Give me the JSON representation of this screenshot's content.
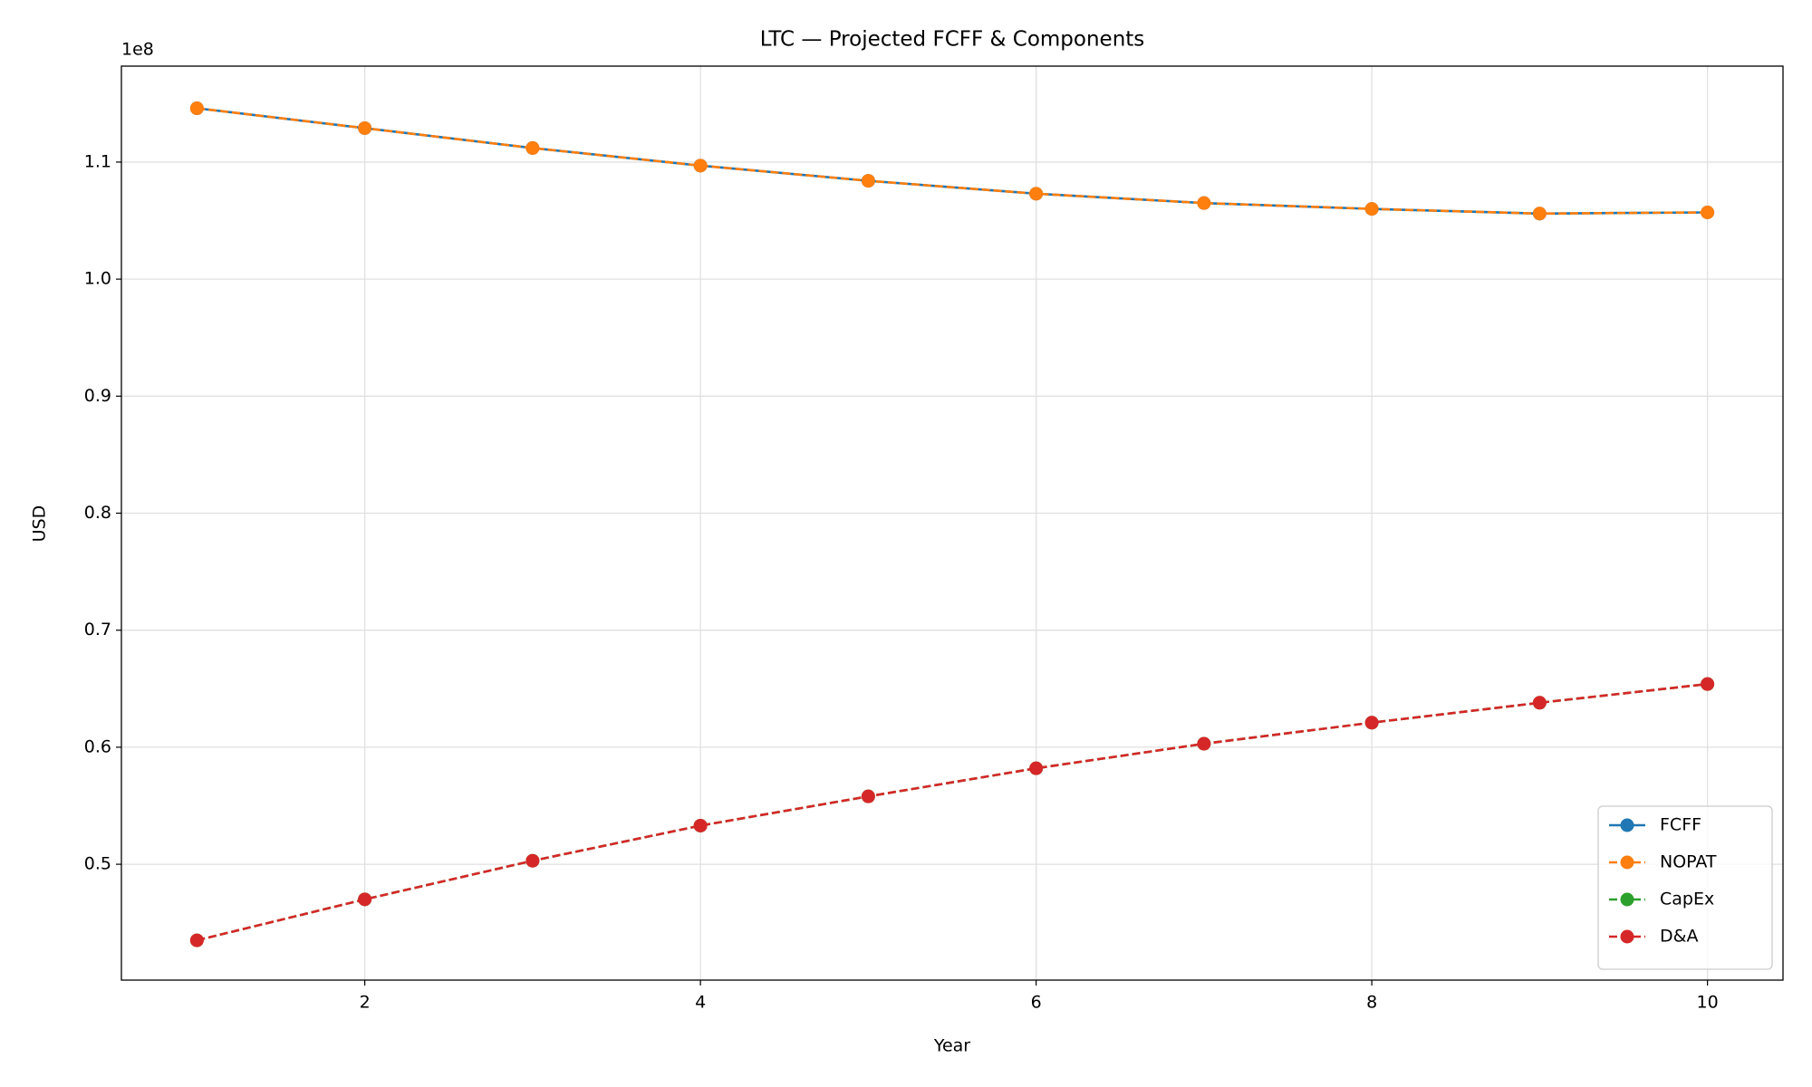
{
  "chart_data": {
    "type": "line",
    "title": "LTC — Projected FCFF & Components",
    "xlabel": "Year",
    "ylabel": "USD",
    "y_offset_label": "1e8",
    "x": [
      1,
      2,
      3,
      4,
      5,
      6,
      7,
      8,
      9,
      10
    ],
    "series": [
      {
        "name": "FCFF",
        "color": "#1f77b4",
        "linestyle": "solid",
        "values": [
          114600000,
          112900000,
          111200000,
          109700000,
          108400000,
          107300000,
          106500000,
          106000000,
          105600000,
          105700000
        ]
      },
      {
        "name": "NOPAT",
        "color": "#ff7f0e",
        "linestyle": "dashed",
        "values": [
          114600000,
          112900000,
          111200000,
          109700000,
          108400000,
          107300000,
          106500000,
          106000000,
          105600000,
          105700000
        ]
      },
      {
        "name": "CapEx",
        "color": "#2ca02c",
        "linestyle": "dashed",
        "values": [
          43500000,
          47000000,
          50300000,
          53300000,
          55800000,
          58200000,
          60300000,
          62100000,
          63800000,
          65400000
        ]
      },
      {
        "name": "D&A",
        "color": "#d62728",
        "linestyle": "dashed",
        "values": [
          43500000,
          47000000,
          50300000,
          53300000,
          55800000,
          58200000,
          60300000,
          62100000,
          63800000,
          65400000
        ]
      }
    ],
    "xlim": [
      0.55,
      10.45
    ],
    "xticks": [
      2,
      4,
      6,
      8,
      10
    ],
    "ylim": [
      40100000,
      118200000
    ],
    "yticks": [
      {
        "value": 50000000,
        "label": "0.5"
      },
      {
        "value": 60000000,
        "label": "0.6"
      },
      {
        "value": 70000000,
        "label": "0.7"
      },
      {
        "value": 80000000,
        "label": "0.8"
      },
      {
        "value": 90000000,
        "label": "0.9"
      },
      {
        "value": 100000000,
        "label": "1.0"
      },
      {
        "value": 110000000,
        "label": "1.1"
      }
    ],
    "grid": true,
    "legend": "lower right"
  }
}
